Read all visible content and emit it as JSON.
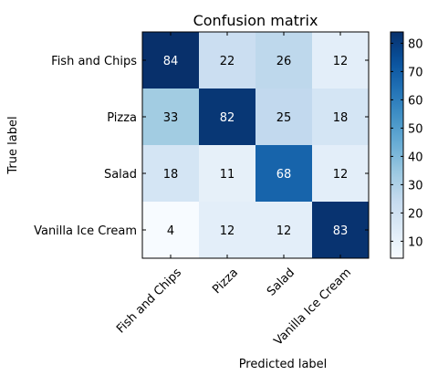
{
  "chart_data": {
    "type": "heatmap",
    "title": "Confusion matrix",
    "xlabel": "Predicted label",
    "ylabel": "True label",
    "x_categories": [
      "Fish and Chips",
      "Pizza",
      "Salad",
      "Vanilla Ice Cream"
    ],
    "y_categories": [
      "Fish and Chips",
      "Pizza",
      "Salad",
      "Vanilla Ice Cream"
    ],
    "values": [
      [
        84,
        22,
        26,
        12
      ],
      [
        33,
        82,
        25,
        18
      ],
      [
        18,
        11,
        68,
        12
      ],
      [
        4,
        12,
        12,
        83
      ]
    ],
    "colormap": "Blues",
    "color_range": [
      4,
      84
    ],
    "colorbar_ticks": [
      10,
      20,
      30,
      40,
      50,
      60,
      70,
      80
    ],
    "x_tick_rotation_deg": 45,
    "grid": false
  }
}
